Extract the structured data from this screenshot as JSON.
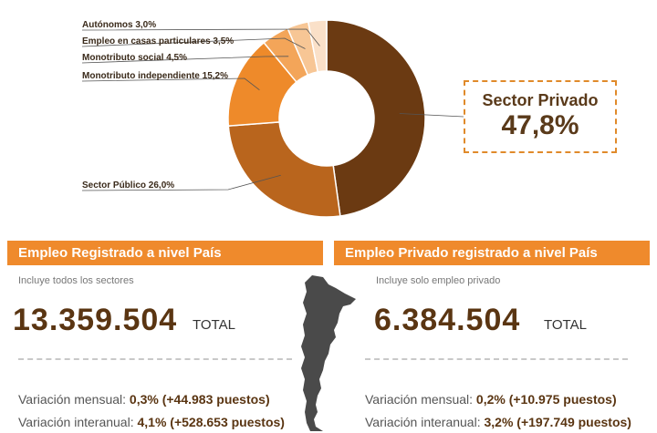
{
  "chart_data": {
    "type": "pie",
    "slices": [
      {
        "label": "Sector Privado",
        "value": 47.8,
        "display": "47,8%",
        "color": "#6b3a12"
      },
      {
        "label": "Sector Público",
        "value": 26.0,
        "display": "26,0%",
        "color": "#b9651d"
      },
      {
        "label": "Monotributo independiente",
        "value": 15.2,
        "display": "15,2%",
        "color": "#ee8a2a"
      },
      {
        "label": "Monotributo social",
        "value": 4.5,
        "display": "4,5%",
        "color": "#f3a559"
      },
      {
        "label": "Empleo en casas particulares",
        "value": 3.5,
        "display": "3,5%",
        "color": "#f7c695"
      },
      {
        "label": "Autónomos",
        "value": 3.0,
        "display": "3,0%",
        "color": "#fae0c8"
      }
    ]
  },
  "callout": {
    "title": "Sector Privado",
    "value": "47,8%"
  },
  "left": {
    "header": "Empleo Registrado a nivel País",
    "subtitle": "Incluye todos los sectores",
    "value": "13.359.504",
    "total_label": "TOTAL",
    "monthly_label": "Variación mensual:",
    "monthly_value": "0,3% (+44.983 puestos)",
    "annual_label": "Variación interanual:",
    "annual_value": "4,1% (+528.653 puestos)"
  },
  "right": {
    "header": "Empleo Privado registrado a nivel País",
    "subtitle": "Incluye solo empleo privado",
    "value": "6.384.504",
    "total_label": "TOTAL",
    "monthly_label": "Variación mensual:",
    "monthly_value": "0,2% (+10.975 puestos)",
    "annual_label": "Variación interanual:",
    "annual_value": "3,2% (+197.749 puestos)"
  },
  "map": {
    "icon": "argentina-map-icon",
    "color": "#4a4a4a"
  }
}
